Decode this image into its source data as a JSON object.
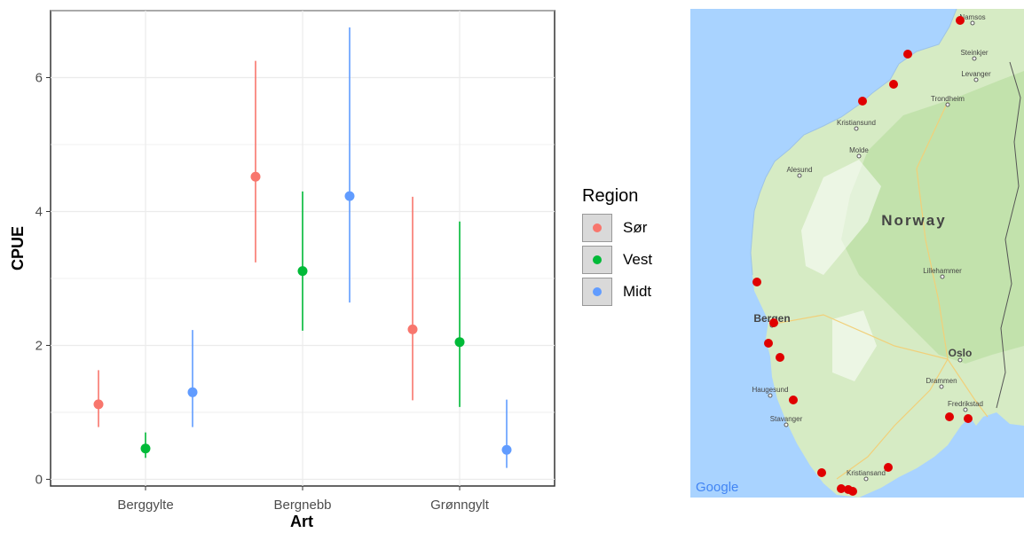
{
  "chart_data": {
    "type": "scatter",
    "xlabel": "Art",
    "ylabel": "CPUE",
    "categories": [
      "Berggylte",
      "Bergnebb",
      "Grønngylt"
    ],
    "ylim": [
      -0.1,
      7.0
    ],
    "yticks": [
      "0",
      "2",
      "4",
      "6"
    ],
    "ytick_values": [
      0,
      2,
      4,
      6
    ],
    "grid": true,
    "legend": {
      "title": "Region",
      "position": "right"
    },
    "series": [
      {
        "name": "Sør",
        "color": "#F8766D",
        "values": [
          1.12,
          4.52,
          2.24
        ],
        "lower": [
          0.78,
          3.24,
          1.18
        ],
        "upper": [
          1.63,
          6.25,
          4.22
        ]
      },
      {
        "name": "Vest",
        "color": "#00BA38",
        "values": [
          0.46,
          3.11,
          2.05
        ],
        "lower": [
          0.32,
          2.22,
          1.08
        ],
        "upper": [
          0.7,
          4.3,
          3.85
        ]
      },
      {
        "name": "Midt",
        "color": "#619CFF",
        "values": [
          1.3,
          4.23,
          0.44
        ],
        "lower": [
          0.78,
          2.64,
          0.17
        ],
        "upper": [
          2.23,
          6.75,
          1.19
        ]
      }
    ]
  },
  "map": {
    "country_label": "Norway",
    "logo": "Google",
    "land_color": "#d6ebc4",
    "water_color": "#a9d3ff",
    "sites_color": "#e00000",
    "cities": [
      {
        "name": "Namsos"
      },
      {
        "name": "Steinkjer"
      },
      {
        "name": "Levanger"
      },
      {
        "name": "Trondheim"
      },
      {
        "name": "Kristiansund"
      },
      {
        "name": "Molde"
      },
      {
        "name": "Alesund"
      },
      {
        "name": "Lillehammer"
      },
      {
        "name": "Bergen"
      },
      {
        "name": "Oslo"
      },
      {
        "name": "Drammen"
      },
      {
        "name": "Haugesund"
      },
      {
        "name": "Stavanger"
      },
      {
        "name": "Fredrikstad"
      },
      {
        "name": "Kristiansand"
      }
    ]
  }
}
